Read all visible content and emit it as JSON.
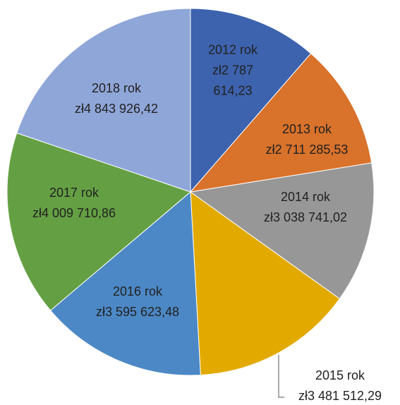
{
  "chart_data": {
    "type": "pie",
    "categories": [
      "2012 rok",
      "2013 rok",
      "2014 rok",
      "2015 rok",
      "2016 rok",
      "2017 rok",
      "2018 rok"
    ],
    "values": [
      2787614.23,
      2711285.53,
      3038741.02,
      3481512.29,
      3595623.48,
      4009710.86,
      4843926.42
    ],
    "value_labels": [
      "zł2 787 614,23",
      "zł2 711 285,53",
      "zł3 038 741,02",
      "zł3 481 512,29",
      "zł3 595 623,48",
      "zł4 009 710,86",
      "zł4 843 926,42"
    ],
    "colors": [
      "#3d63ae",
      "#d9722b",
      "#979797",
      "#e2aa00",
      "#4c88c5",
      "#64a043",
      "#8fa6d8"
    ]
  }
}
